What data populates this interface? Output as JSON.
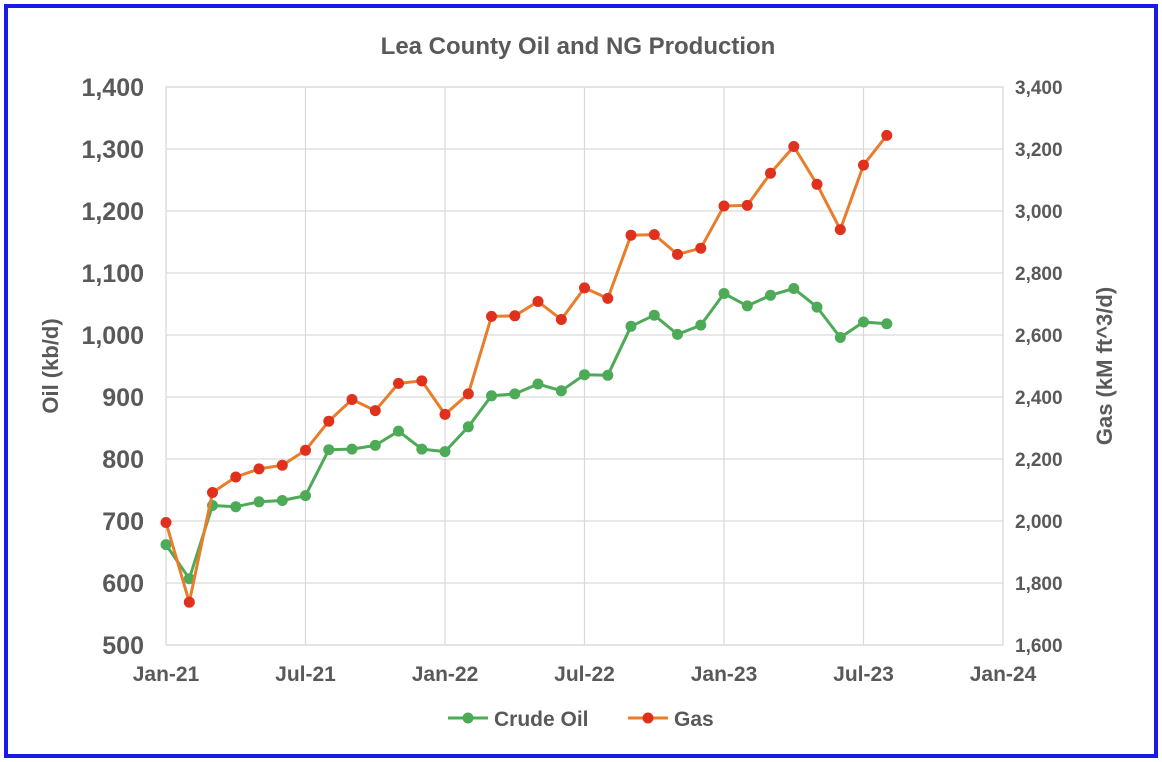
{
  "chart_data": {
    "type": "line",
    "title": "Lea County Oil and NG Production",
    "x_ticks": [
      "Jan-21",
      "Jul-21",
      "Jan-22",
      "Jul-22",
      "Jan-23",
      "Jul-23",
      "Jan-24"
    ],
    "x_range": [
      "2021-01",
      "2024-01"
    ],
    "y_left": {
      "label": "Oil (kb/d)",
      "range": [
        500,
        1400
      ],
      "ticks": [
        "500",
        "600",
        "700",
        "800",
        "900",
        "1,000",
        "1,100",
        "1,200",
        "1,300",
        "1,400"
      ]
    },
    "y_right": {
      "label": "Gas (kM ft^3/d)",
      "range": [
        1600,
        3400
      ],
      "ticks": [
        "1,600",
        "1,800",
        "2,000",
        "2,200",
        "2,400",
        "2,600",
        "2,800",
        "3,000",
        "3,200",
        "3,400"
      ]
    },
    "grid": true,
    "legend_position": "bottom",
    "x": [
      "2021-01",
      "2021-02",
      "2021-03",
      "2021-04",
      "2021-05",
      "2021-06",
      "2021-07",
      "2021-08",
      "2021-09",
      "2021-10",
      "2021-11",
      "2021-12",
      "2022-01",
      "2022-02",
      "2022-03",
      "2022-04",
      "2022-05",
      "2022-06",
      "2022-07",
      "2022-08",
      "2022-09",
      "2022-10",
      "2022-11",
      "2022-12",
      "2023-01",
      "2023-02",
      "2023-03",
      "2023-04",
      "2023-05",
      "2023-06",
      "2023-07",
      "2023-08"
    ],
    "series": [
      {
        "name": "Crude Oil",
        "axis": "left",
        "color": "#4daa57",
        "values": [
          662,
          607,
          725,
          723,
          731,
          733,
          741,
          815,
          816,
          822,
          845,
          816,
          812,
          852,
          902,
          905,
          921,
          910,
          936,
          935,
          1014,
          1032,
          1001,
          1016,
          1067,
          1047,
          1064,
          1075,
          1045,
          996,
          1021,
          1018
        ]
      },
      {
        "name": "Gas",
        "axis": "right",
        "color": "#e87d2b",
        "marker_color": "#e0301e",
        "values": [
          1995,
          1738,
          2092,
          2142,
          2168,
          2180,
          2228,
          2322,
          2392,
          2356,
          2444,
          2452,
          2344,
          2410,
          2660,
          2662,
          2708,
          2650,
          2752,
          2718,
          2922,
          2924,
          2860,
          2880,
          3016,
          3018,
          3122,
          3208,
          3086,
          2940,
          3148,
          3244
        ]
      }
    ]
  }
}
